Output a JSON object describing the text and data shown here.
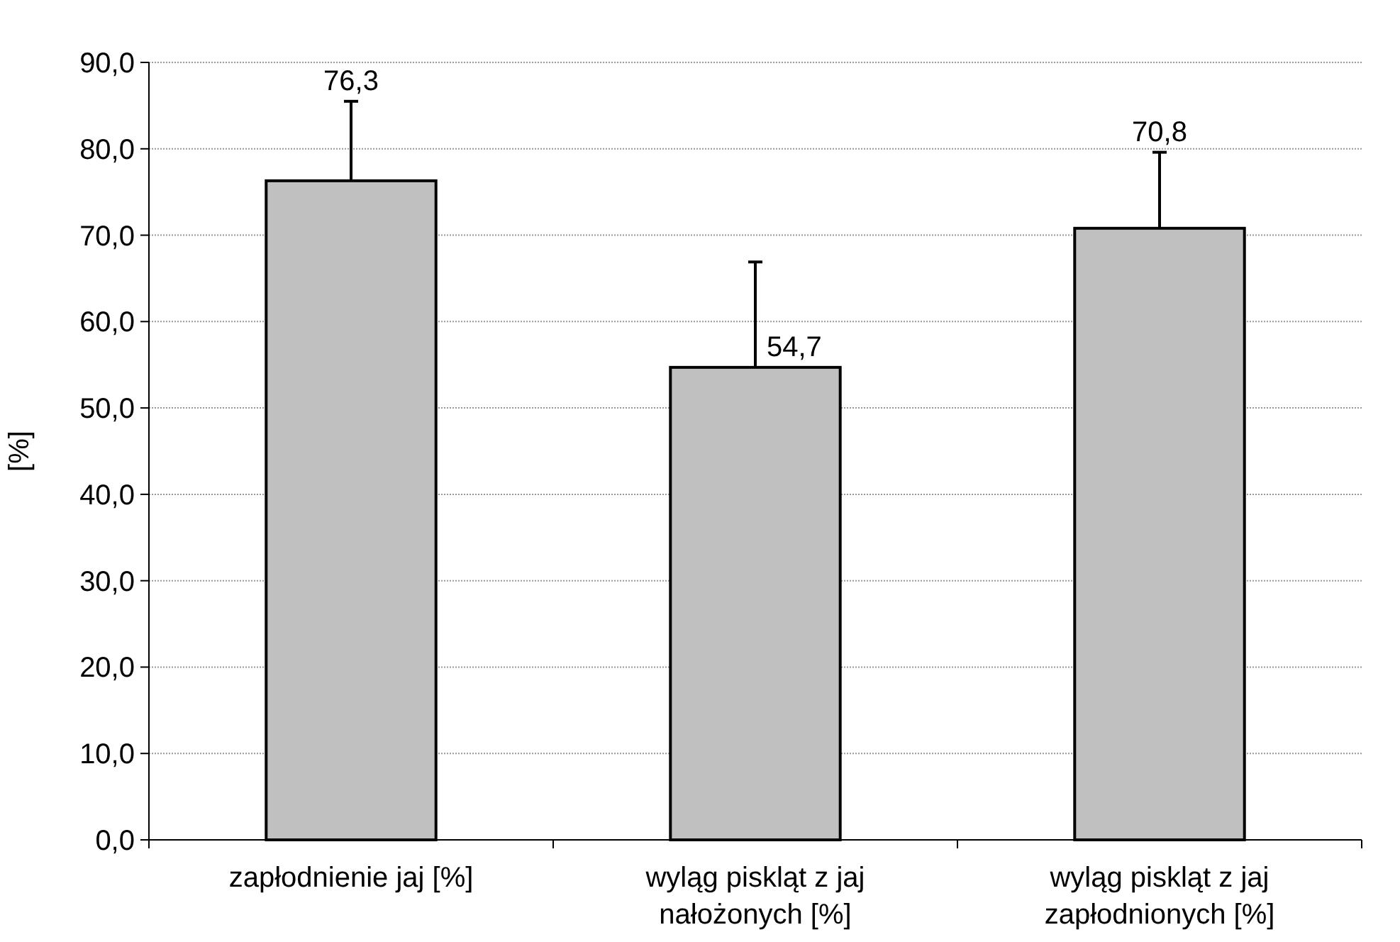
{
  "chart_data": {
    "type": "bar",
    "ylabel": "[%]",
    "categories": [
      "zapłodnienie jaj [%]",
      "wyląg piskląt z jaj nałożonych [%]",
      "wyląg piskląt z jaj zapłodnionych [%]"
    ],
    "values": [
      76.3,
      54.7,
      70.8
    ],
    "errors": [
      [
        76.3,
        85.5
      ],
      [
        54.7,
        66.9
      ],
      [
        70.8,
        79.6
      ]
    ],
    "value_labels": [
      "76,3",
      "54,7",
      "70,8"
    ],
    "color": "#c0c0c0",
    "ylim": [
      0,
      90
    ],
    "yticks": [
      {
        "value": 0,
        "label": "0,0"
      },
      {
        "value": 10,
        "label": "10,0"
      },
      {
        "value": 20,
        "label": "20,0"
      },
      {
        "value": 30,
        "label": "30,0"
      },
      {
        "value": 40,
        "label": "40,0"
      },
      {
        "value": 50,
        "label": "50,0"
      },
      {
        "value": 60,
        "label": "60,0"
      },
      {
        "value": 70,
        "label": "70,0"
      },
      {
        "value": 80,
        "label": "80,0"
      },
      {
        "value": 90,
        "label": "90,0"
      }
    ],
    "grid": "y",
    "legend": false
  }
}
